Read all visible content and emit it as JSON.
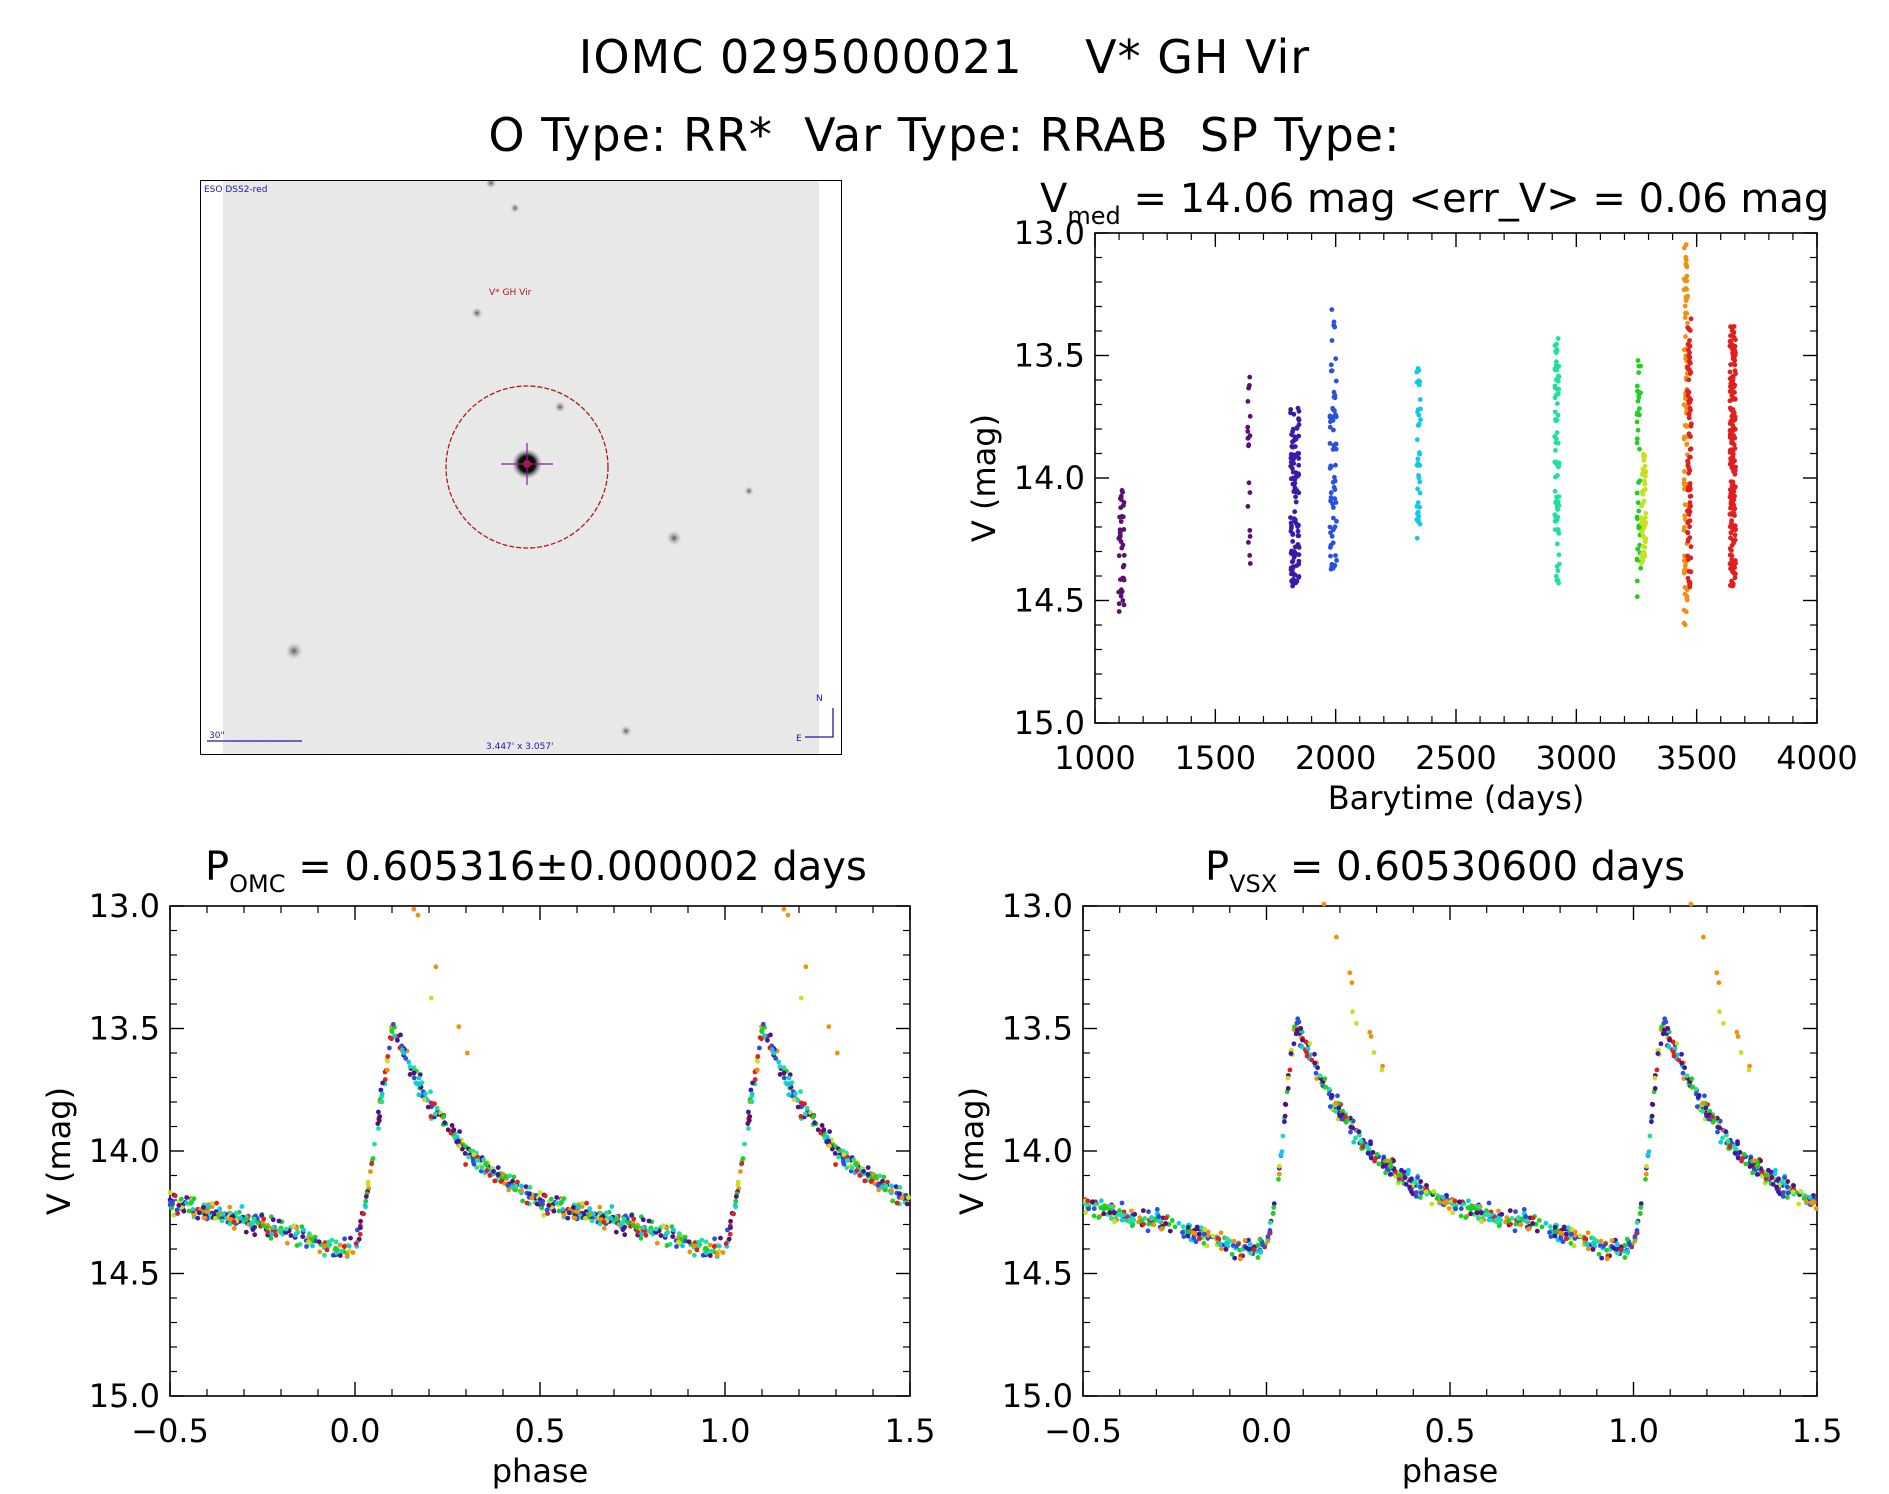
{
  "header": {
    "line1": "IOMC 0295000021    V* GH Vir",
    "line2": "O Type: RR*  Var Type: RRAB  SP Type:"
  },
  "thumbnail": {
    "survey_label": "ESO DSS2-red",
    "object_label": "V* GH Vir",
    "scale_label": "30\"",
    "fov_label": "3.447' x 3.057'",
    "north_label": "N",
    "east_label": "E"
  },
  "colors": {
    "circle": "#b01818",
    "crosshair": "#8a1aa0",
    "thumb_text": "#1a1aa0"
  },
  "chart_data": [
    {
      "id": "lightcurve",
      "type": "scatter",
      "title_main": "V",
      "title_sub": "med",
      "title_rest": " = 14.06 mag <err_V> = 0.06 mag",
      "xlabel": "Barytime (days)",
      "ylabel": "V (mag)",
      "xlim": [
        1000,
        4000
      ],
      "ylim": [
        15.0,
        13.0
      ],
      "y_inverted": true,
      "xticks": [
        1000,
        1500,
        2000,
        2500,
        3000,
        3500,
        4000
      ],
      "yticks": [
        13.0,
        13.5,
        14.0,
        14.5,
        15.0
      ],
      "xticklabels": [
        "1000",
        "1500",
        "2000",
        "2500",
        "3000",
        "3500",
        "4000"
      ],
      "yticklabels": [
        "13.0",
        "13.5",
        "14.0",
        "14.5",
        "15.0"
      ],
      "series": [
        {
          "color": "#5a1070",
          "x_center": 1110,
          "x_spread": 12,
          "y_min": 14.05,
          "y_max": 14.55,
          "n": 40
        },
        {
          "color": "#5a1070",
          "x_center": 1640,
          "x_spread": 6,
          "y_min": 13.55,
          "y_max": 14.35,
          "n": 20
        },
        {
          "color": "#3a1aa8",
          "x_center": 1830,
          "x_spread": 18,
          "y_min": 13.7,
          "y_max": 14.45,
          "n": 110
        },
        {
          "color": "#2a50e0",
          "x_center": 1990,
          "x_spread": 14,
          "y_min": 13.28,
          "y_max": 14.38,
          "n": 70
        },
        {
          "color": "#10c8e8",
          "x_center": 2345,
          "x_spread": 8,
          "y_min": 13.55,
          "y_max": 14.27,
          "n": 40
        },
        {
          "color": "#20e0a0",
          "x_center": 2920,
          "x_spread": 10,
          "y_min": 13.43,
          "y_max": 14.43,
          "n": 80
        },
        {
          "color": "#20d020",
          "x_center": 3260,
          "x_spread": 8,
          "y_min": 13.5,
          "y_max": 14.5,
          "n": 40
        },
        {
          "color": "#c8e020",
          "x_center": 3280,
          "x_spread": 10,
          "y_min": 13.9,
          "y_max": 14.35,
          "n": 50
        },
        {
          "color": "#f09010",
          "x_center": 3455,
          "x_spread": 8,
          "y_min": 13.0,
          "y_max": 14.62,
          "n": 90
        },
        {
          "color": "#e02020",
          "x_center": 3470,
          "x_spread": 8,
          "y_min": 13.35,
          "y_max": 14.45,
          "n": 90
        },
        {
          "color": "#e02020",
          "x_center": 3650,
          "x_spread": 12,
          "y_min": 13.38,
          "y_max": 14.45,
          "n": 200
        }
      ]
    },
    {
      "id": "phase_omc",
      "type": "scatter",
      "title_main": "P",
      "title_sub": "OMC",
      "title_rest": " = 0.605316±0.000002 days",
      "xlabel": "phase",
      "ylabel": "V (mag)",
      "xlim": [
        -0.5,
        1.5
      ],
      "ylim": [
        15.0,
        13.0
      ],
      "y_inverted": true,
      "xticks": [
        -0.5,
        0.0,
        0.5,
        1.0,
        1.5
      ],
      "yticks": [
        13.0,
        13.5,
        14.0,
        14.5,
        15.0
      ],
      "xticklabels": [
        "−0.5",
        "0.0",
        "0.5",
        "1.0",
        "1.5"
      ],
      "yticklabels": [
        "13.0",
        "13.5",
        "14.0",
        "14.5",
        "15.0"
      ],
      "template": {
        "phase": [
          0.0,
          0.03,
          0.06,
          0.09,
          0.1,
          0.12,
          0.15,
          0.2,
          0.25,
          0.3,
          0.4,
          0.5,
          0.6,
          0.7,
          0.8,
          0.85,
          0.9,
          0.95,
          1.0
        ],
        "mag": [
          14.4,
          14.2,
          13.9,
          13.6,
          13.5,
          13.55,
          13.65,
          13.8,
          13.9,
          14.0,
          14.12,
          14.2,
          14.25,
          14.28,
          14.32,
          14.35,
          14.38,
          14.4,
          14.4
        ]
      },
      "series_colors": [
        "#5a1070",
        "#3a1aa8",
        "#2a50e0",
        "#10c8e8",
        "#20e0a0",
        "#20d020",
        "#c8e020",
        "#f09010",
        "#e02020"
      ]
    },
    {
      "id": "phase_vsx",
      "type": "scatter",
      "title_main": "P",
      "title_sub": "VSX",
      "title_rest": " = 0.60530600 days",
      "xlabel": "phase",
      "ylabel": "V (mag)",
      "xlim": [
        -0.5,
        1.5
      ],
      "ylim": [
        15.0,
        13.0
      ],
      "y_inverted": true,
      "xticks": [
        -0.5,
        0.0,
        0.5,
        1.0,
        1.5
      ],
      "yticks": [
        13.0,
        13.5,
        14.0,
        14.5,
        15.0
      ],
      "xticklabels": [
        "−0.5",
        "0.0",
        "0.5",
        "1.0",
        "1.5"
      ],
      "yticklabels": [
        "13.0",
        "13.5",
        "14.0",
        "14.5",
        "15.0"
      ],
      "template": {
        "phase": [
          0.0,
          0.03,
          0.05,
          0.07,
          0.08,
          0.1,
          0.13,
          0.18,
          0.23,
          0.28,
          0.38,
          0.48,
          0.58,
          0.68,
          0.78,
          0.83,
          0.88,
          0.93,
          1.0
        ],
        "mag": [
          14.4,
          14.15,
          13.85,
          13.58,
          13.5,
          13.55,
          13.65,
          13.8,
          13.9,
          14.0,
          14.12,
          14.2,
          14.25,
          14.28,
          14.32,
          14.35,
          14.38,
          14.4,
          14.4
        ]
      },
      "series_colors": [
        "#5a1070",
        "#3a1aa8",
        "#2a50e0",
        "#10c8e8",
        "#20e0a0",
        "#20d020",
        "#c8e020",
        "#f09010",
        "#e02020"
      ]
    }
  ]
}
